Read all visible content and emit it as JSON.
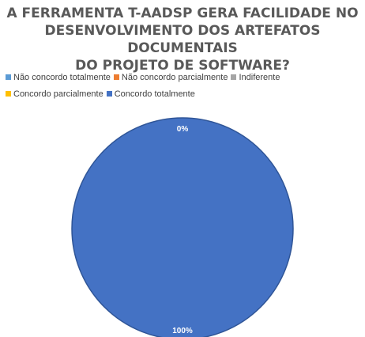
{
  "chart_data": {
    "type": "pie",
    "title_lines": [
      "A FERRAMENTA T-AADSP GERA FACILIDADE NO",
      "DESENVOLVIMENTO DOS ARTEFATOS DOCUMENTAIS",
      "DO PROJETO DE SOFTWARE?"
    ],
    "categories": [
      "Não concordo totalmente",
      "Não concordo parcialmente",
      "Indiferente",
      "Concordo parcialmente",
      "Concordo totalmente"
    ],
    "values": [
      0,
      0,
      0,
      0,
      100
    ],
    "colors": [
      "#5b9bd5",
      "#ed7d31",
      "#a5a5a5",
      "#ffc000",
      "#4472c4"
    ],
    "data_labels": [
      "0%",
      "0%",
      "0%",
      "0%",
      "100%"
    ],
    "legend_position": "top"
  }
}
